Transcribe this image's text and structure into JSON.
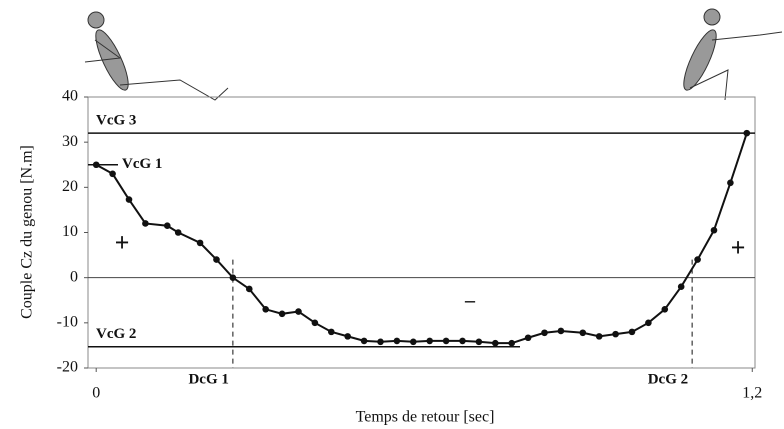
{
  "chart_data": {
    "type": "line",
    "x_label": "Temps de retour [sec]",
    "y_label": "Couple Cz du genou [N.m]",
    "x": [
      0,
      0.03,
      0.06,
      0.09,
      0.13,
      0.15,
      0.19,
      0.22,
      0.25,
      0.28,
      0.31,
      0.34,
      0.37,
      0.4,
      0.43,
      0.46,
      0.49,
      0.52,
      0.55,
      0.58,
      0.61,
      0.64,
      0.67,
      0.7,
      0.73,
      0.76,
      0.79,
      0.82,
      0.85,
      0.89,
      0.92,
      0.95,
      0.98,
      1.01,
      1.04,
      1.07,
      1.1,
      1.13,
      1.16,
      1.19
    ],
    "series": [
      {
        "color": "#111111",
        "values": [
          25,
          23,
          17.3,
          12,
          11.5,
          10,
          7.7,
          4,
          0,
          -2.5,
          -7,
          -8,
          -7.5,
          -10,
          -12,
          -13,
          -14,
          -14.2,
          -14,
          -14.2,
          -14,
          -14,
          -14,
          -14.2,
          -14.5,
          -14.5,
          -13.3,
          -12.2,
          -11.8,
          -12.2,
          -13,
          -12.5,
          -12,
          -10,
          -7,
          -2,
          4,
          10.5,
          21,
          32
        ]
      }
    ],
    "xlim": [
      -0.015,
      1.205
    ],
    "ylim": [
      -20,
      40
    ],
    "xticks": [
      0,
      {
        "value": 1.2,
        "label": "1,2"
      }
    ],
    "yticks": [
      -20,
      -10,
      0,
      10,
      20,
      30,
      40
    ],
    "h_lines": [
      {
        "label": "VcG 3",
        "value": 32
      },
      {
        "label": "VcG 1",
        "value": 25
      },
      {
        "label": "VcG 2",
        "value": -15.3
      }
    ],
    "v_lines": [
      {
        "label": "DcG 1",
        "value": 0.25
      },
      {
        "label": "DcG 2",
        "value": 1.09
      }
    ],
    "annotations": [
      "+",
      "–",
      "+"
    ]
  }
}
